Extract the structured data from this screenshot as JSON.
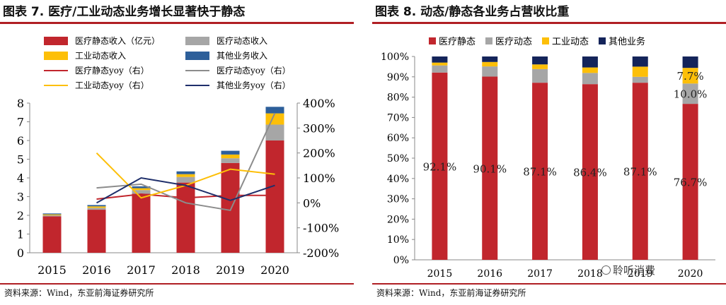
{
  "left": {
    "title": "图表 7.  医疗/工业动态业务增长显著快于静态",
    "source": "资料来源：Wind，东亚前海证券研究所",
    "chart_data": {
      "type": "bar",
      "stacked": true,
      "categories": [
        "2015",
        "2016",
        "2017",
        "2018",
        "2019",
        "2020"
      ],
      "series": [
        {
          "name": "医疗静态收入（亿元）",
          "values": [
            1.95,
            2.3,
            3.15,
            3.75,
            4.8,
            6.0
          ],
          "color": "#c1262d"
        },
        {
          "name": "医疗动态收入",
          "values": [
            0.05,
            0.1,
            0.2,
            0.3,
            0.25,
            0.85
          ],
          "color": "#a6a6a6"
        },
        {
          "name": "工业动态收入",
          "values": [
            0.05,
            0.08,
            0.1,
            0.15,
            0.2,
            0.6
          ],
          "color": "#fdbf08"
        },
        {
          "name": "其他业务收入",
          "values": [
            0.05,
            0.07,
            0.1,
            0.15,
            0.2,
            0.35
          ],
          "color": "#2d5f9a"
        }
      ],
      "lines": [
        {
          "name": "医疗静态yoy（右）",
          "x": [
            "2016",
            "2017",
            "2018",
            "2019",
            "2020"
          ],
          "values": [
            15,
            35,
            20,
            30,
            30
          ],
          "color": "#c1262d"
        },
        {
          "name": "医疗动态yoy（右）",
          "x": [
            "2016",
            "2017",
            "2018",
            "2019",
            "2020"
          ],
          "values": [
            60,
            75,
            0,
            -30,
            360
          ],
          "color": "#8c8c8c"
        },
        {
          "name": "工业动态yoy（右）",
          "x": [
            "2016",
            "2017",
            "2018",
            "2019",
            "2020"
          ],
          "values": [
            200,
            20,
            70,
            135,
            115
          ],
          "color": "#fdbf08"
        },
        {
          "name": "其他业务yoy（右）",
          "x": [
            "2016",
            "2017",
            "2018",
            "2019",
            "2020"
          ],
          "values": [
            0,
            100,
            70,
            10,
            70
          ],
          "color": "#1f2f6b"
        }
      ],
      "yticks": [
        "0",
        "1",
        "2",
        "3",
        "4",
        "5",
        "6",
        "7",
        "8"
      ],
      "ylim": [
        0,
        8
      ],
      "y2ticks": [
        "-200%",
        "-100%",
        "0%",
        "100%",
        "200%",
        "300%",
        "400%"
      ],
      "y2lim": [
        -200,
        400
      ],
      "legend": "top",
      "grid": false
    }
  },
  "right": {
    "title": "图表 8.  动态/静态各业务占营收比重",
    "source": "资料来源：Wind，东亚前海证券研究所",
    "chart_data": {
      "type": "bar",
      "stacked": true,
      "categories": [
        "2015",
        "2016",
        "2017",
        "2018",
        "2019",
        "2020"
      ],
      "series": [
        {
          "name": "医疗静态",
          "values": [
            92.1,
            90.1,
            87.1,
            86.4,
            87.1,
            76.7
          ],
          "color": "#c1262d"
        },
        {
          "name": "医疗动态",
          "values": [
            3.5,
            5.0,
            6.7,
            5.5,
            2.9,
            10.0
          ],
          "color": "#a6a6a6"
        },
        {
          "name": "工业动态",
          "values": [
            1.4,
            2.2,
            2.3,
            2.7,
            5.0,
            7.7
          ],
          "color": "#fdbf08"
        },
        {
          "name": "其他业务",
          "values": [
            3.0,
            2.7,
            3.9,
            5.4,
            5.0,
            5.6
          ],
          "color": "#14245a"
        }
      ],
      "data_labels": [
        {
          "category": "2015",
          "text": "92.1%"
        },
        {
          "category": "2016",
          "text": "90.1%"
        },
        {
          "category": "2017",
          "text": "87.1%"
        },
        {
          "category": "2018",
          "text": "86.4%"
        },
        {
          "category": "2019",
          "text": "87.1%"
        },
        {
          "category": "2020",
          "text": "76.7%"
        },
        {
          "category": "2020",
          "text": "10.0%"
        },
        {
          "category": "2020",
          "text": "7.7%"
        }
      ],
      "yticks": [
        "0%",
        "10%",
        "20%",
        "30%",
        "40%",
        "50%",
        "60%",
        "70%",
        "80%",
        "90%",
        "100%"
      ],
      "ylim": [
        0,
        100
      ],
      "legend": "top",
      "grid": false
    },
    "watermark": "聆听消费"
  }
}
